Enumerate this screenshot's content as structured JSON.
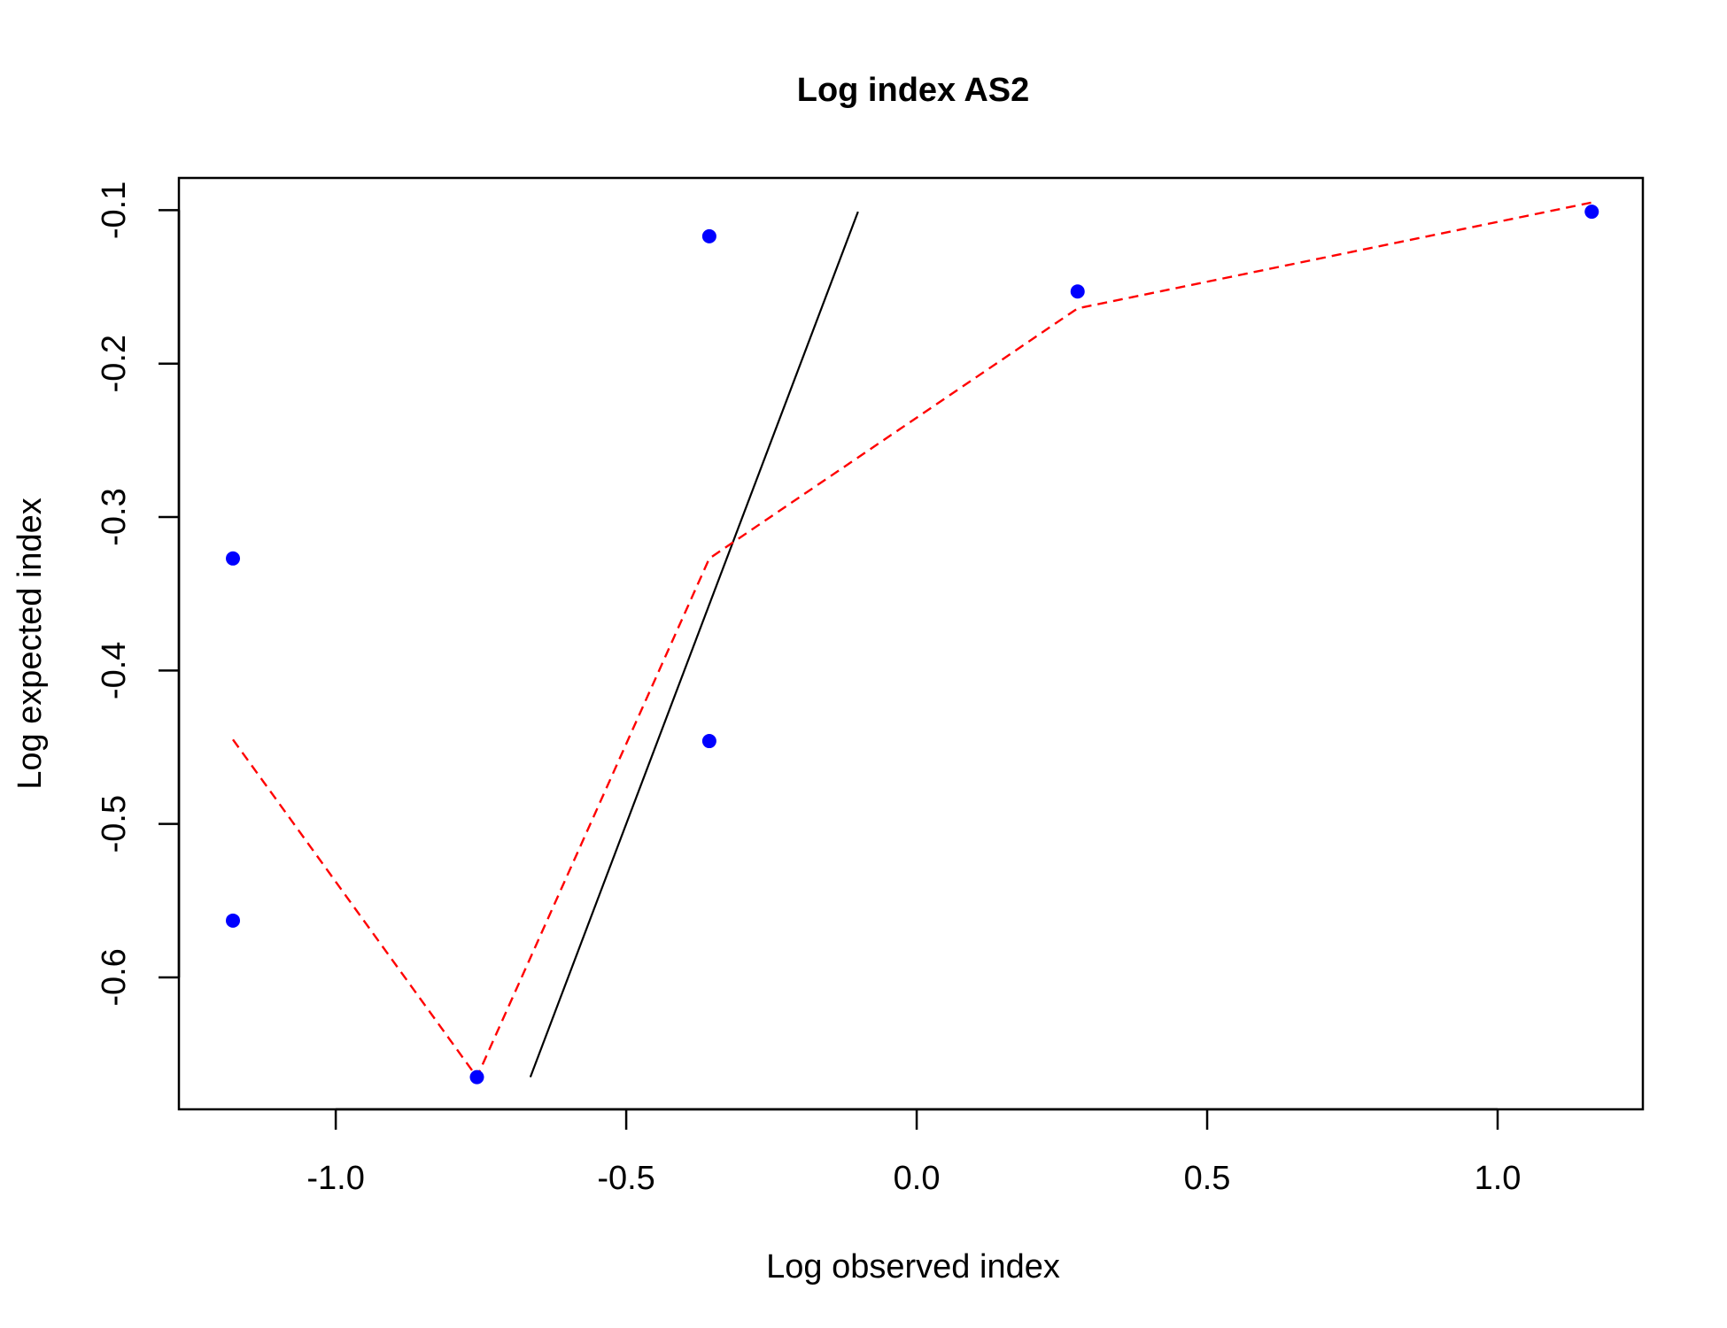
{
  "chart_data": {
    "type": "scatter",
    "title": "Log index AS2",
    "xlabel": "Log observed index",
    "ylabel": "Log expected index",
    "xlim": [
      -1.27,
      1.25
    ],
    "ylim": [
      -0.686,
      -0.079
    ],
    "x_ticks": [
      {
        "value": -1.0,
        "label": "-1.0"
      },
      {
        "value": -0.5,
        "label": "-0.5"
      },
      {
        "value": 0.0,
        "label": "0.0"
      },
      {
        "value": 0.5,
        "label": "0.5"
      },
      {
        "value": 1.0,
        "label": "1.0"
      }
    ],
    "y_ticks": [
      {
        "value": -0.1,
        "label": "-0.1"
      },
      {
        "value": -0.2,
        "label": "-0.2"
      },
      {
        "value": -0.3,
        "label": "-0.3"
      },
      {
        "value": -0.4,
        "label": "-0.4"
      },
      {
        "value": -0.5,
        "label": "-0.5"
      },
      {
        "value": -0.6,
        "label": "-0.6"
      }
    ],
    "grid": false,
    "points": {
      "color": "#0000ff",
      "x": [
        -1.177,
        -1.177,
        -0.757,
        -0.357,
        -0.357,
        0.277,
        1.162
      ],
      "y": [
        -0.327,
        -0.563,
        -0.665,
        -0.117,
        -0.446,
        -0.153,
        -0.101
      ]
    },
    "reference_line": {
      "color": "#000000",
      "x": [
        -0.665,
        -0.101
      ],
      "y": [
        -0.665,
        -0.101
      ]
    },
    "smoother_line": {
      "color": "#ff0000",
      "style": "dashed",
      "x": [
        -1.177,
        -0.757,
        -0.357,
        0.277,
        1.162
      ],
      "y": [
        -0.445,
        -0.665,
        -0.327,
        -0.164,
        -0.095
      ]
    }
  }
}
